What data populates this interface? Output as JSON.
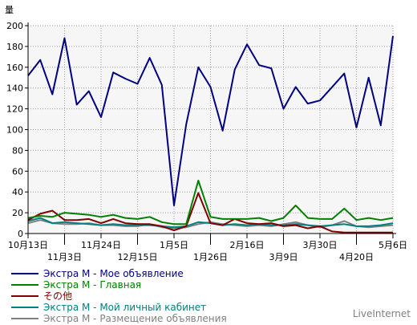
{
  "chart_data": {
    "type": "line",
    "ylabel": "量",
    "ylim": [
      0,
      200
    ],
    "yticks": [
      0,
      20,
      40,
      60,
      80,
      100,
      120,
      140,
      160,
      180,
      200
    ],
    "grid": true,
    "legend_position": "bottom-left",
    "x_tick_labels": [
      {
        "label": "10月13日",
        "index": 0,
        "row": 1
      },
      {
        "label": "11月3日",
        "index": 3,
        "row": 2
      },
      {
        "label": "11月24日",
        "index": 6,
        "row": 1
      },
      {
        "label": "12月15日",
        "index": 9,
        "row": 2
      },
      {
        "label": "1月5日",
        "index": 12,
        "row": 1
      },
      {
        "label": "1月26日",
        "index": 15,
        "row": 2
      },
      {
        "label": "2月16日",
        "index": 18,
        "row": 1
      },
      {
        "label": "3月9日",
        "index": 21,
        "row": 2
      },
      {
        "label": "3月30日",
        "index": 24,
        "row": 1
      },
      {
        "label": "4月20日",
        "index": 27,
        "row": 2
      },
      {
        "label": "5月6日",
        "index": 30,
        "row": 1
      }
    ],
    "series": [
      {
        "name": "Экстра М - Мое объявление",
        "color": "#000080",
        "values": [
          152,
          167,
          134,
          188,
          124,
          137,
          112,
          155,
          149,
          144,
          169,
          143,
          27,
          105,
          160,
          141,
          99,
          158,
          182,
          162,
          159,
          120,
          141,
          125,
          128,
          141,
          154,
          102,
          150,
          104,
          190
        ]
      },
      {
        "name": "Экстра М - Главная",
        "color": "#008000",
        "values": [
          15,
          17,
          16,
          20,
          19,
          18,
          16,
          18,
          15,
          14,
          16,
          11,
          9,
          9,
          51,
          16,
          14,
          14,
          14,
          15,
          12,
          15,
          27,
          15,
          14,
          14,
          24,
          13,
          15,
          13,
          15
        ]
      },
      {
        "name": "その他",
        "color": "#800000",
        "values": [
          13,
          19,
          22,
          13,
          13,
          14,
          10,
          14,
          10,
          9,
          9,
          7,
          3,
          7,
          39,
          10,
          8,
          14,
          10,
          9,
          10,
          7,
          8,
          5,
          7,
          2,
          1,
          1,
          1,
          1,
          1
        ]
      },
      {
        "name": "Экстра М - Мой личный кабинет",
        "color": "#008080",
        "values": [
          12,
          15,
          10,
          11,
          10,
          9,
          8,
          9,
          8,
          8,
          8,
          7,
          6,
          7,
          11,
          10,
          8,
          9,
          8,
          9,
          8,
          8,
          9,
          8,
          7,
          8,
          9,
          7,
          7,
          8,
          10
        ]
      },
      {
        "name": "Экстра М - Размещение объявления",
        "color": "#808080",
        "values": [
          10,
          13,
          10,
          9,
          9,
          10,
          8,
          8,
          7,
          7,
          9,
          6,
          5,
          6,
          9,
          11,
          9,
          8,
          7,
          8,
          7,
          9,
          11,
          8,
          6,
          8,
          12,
          7,
          6,
          7,
          8
        ]
      }
    ]
  },
  "watermark": "LiveInternet"
}
